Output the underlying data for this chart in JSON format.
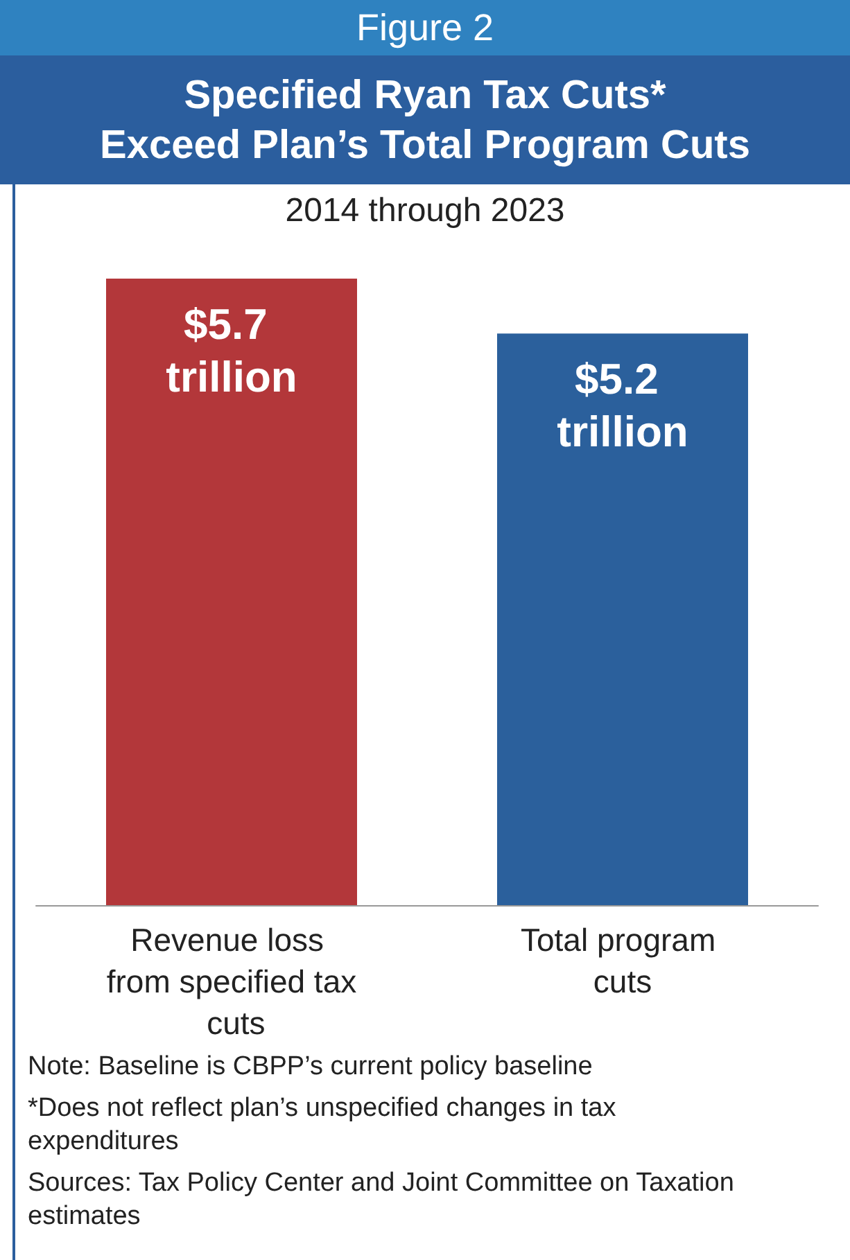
{
  "chart_data": {
    "type": "bar",
    "title": "Specified Ryan Tax Cuts*\nExceed Plan’s Total Program Cuts",
    "subtitle": "2014 through 2023",
    "categories": [
      "Revenue loss from specified tax cuts",
      "Total program cuts"
    ],
    "values": [
      5.7,
      5.2
    ],
    "colors": [
      "#b3373a",
      "#2b609c"
    ],
    "value_labels": [
      "$5.7 trillion",
      "$5.2 trillion"
    ],
    "ylim": [
      0,
      5.7
    ],
    "annotations": [
      "Figure 2",
      "Note: Baseline is CBPP’s current policy baseline",
      "*Does not reflect plan’s unspecified changes in tax expenditures",
      "Sources: Tax Policy Center and Joint Committee on Taxation estimates"
    ]
  }
}
